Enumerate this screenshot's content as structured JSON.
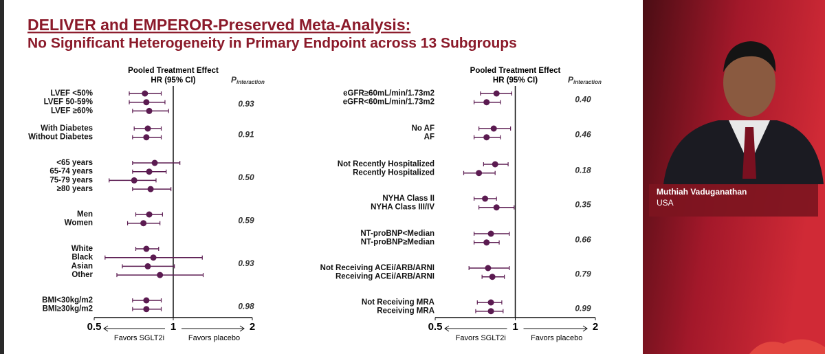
{
  "title": "DELIVER and EMPEROR-Preserved Meta-Analysis:",
  "subtitle": "No Significant Heterogeneity in Primary Endpoint across 13 Subgroups",
  "speaker": {
    "name": "Muthiah Vaduganathan",
    "location": "USA"
  },
  "chart_data": [
    {
      "type": "forest",
      "header": "Pooled Treatment Effect",
      "subheader": "HR (95% CI)",
      "p_header": "P",
      "p_header_sub": "interaction",
      "favors_left": "Favors SGLT2i",
      "favors_right": "Favors placebo",
      "log_x": true,
      "xlim": [
        0.5,
        2
      ],
      "xticks": [
        0.5,
        1,
        2
      ],
      "color": "#5b1b51",
      "groups": [
        {
          "categories": [
            "LVEF <50%",
            "LVEF 50-59%",
            "LVEF ≥60%"
          ],
          "values": [
            0.78,
            0.79,
            0.81
          ],
          "lower": [
            0.68,
            0.68,
            0.7
          ],
          "upper": [
            0.9,
            0.93,
            0.96
          ],
          "p": "0.93"
        },
        {
          "categories": [
            "With Diabetes",
            "Without Diabetes"
          ],
          "values": [
            0.8,
            0.79
          ],
          "lower": [
            0.71,
            0.7
          ],
          "upper": [
            0.9,
            0.9
          ],
          "p": "0.91"
        },
        {
          "categories": [
            "<65 years",
            "65-74 years",
            "75-79 years",
            "≥80 years"
          ],
          "values": [
            0.85,
            0.81,
            0.71,
            0.82
          ],
          "lower": [
            0.7,
            0.7,
            0.57,
            0.7
          ],
          "upper": [
            1.06,
            0.94,
            0.86,
            0.98
          ],
          "p": "0.50"
        },
        {
          "categories": [
            "Men",
            "Women"
          ],
          "values": [
            0.81,
            0.77
          ],
          "lower": [
            0.72,
            0.67
          ],
          "upper": [
            0.91,
            0.89
          ],
          "p": "0.59"
        },
        {
          "categories": [
            "White",
            "Black",
            "Asian",
            "Other"
          ],
          "values": [
            0.79,
            0.84,
            0.8,
            0.89
          ],
          "lower": [
            0.72,
            0.55,
            0.64,
            0.61
          ],
          "upper": [
            0.88,
            1.29,
            1.01,
            1.3
          ],
          "p": "0.93"
        },
        {
          "categories": [
            "BMI<30kg/m2",
            "BMI≥30kg/m2"
          ],
          "values": [
            0.79,
            0.79
          ],
          "lower": [
            0.7,
            0.7
          ],
          "upper": [
            0.9,
            0.9
          ],
          "p": "0.98"
        }
      ]
    },
    {
      "type": "forest",
      "header": "Pooled Treatment Effect",
      "subheader": "HR (95% CI)",
      "p_header": "P",
      "p_header_sub": "interaction",
      "favors_left": "Favors SGLT2i",
      "favors_right": "Favors placebo",
      "log_x": true,
      "xlim": [
        0.5,
        2
      ],
      "xticks": [
        0.5,
        1,
        2
      ],
      "color": "#5b1b51",
      "groups": [
        {
          "categories": [
            "eGFR≥60mL/min/1.73m2",
            "eGFR<60mL/min/1.73m2"
          ],
          "values": [
            0.85,
            0.78
          ],
          "lower": [
            0.74,
            0.7
          ],
          "upper": [
            0.97,
            0.88
          ],
          "p": "0.40"
        },
        {
          "categories": [
            "No AF",
            "AF"
          ],
          "values": [
            0.83,
            0.78
          ],
          "lower": [
            0.73,
            0.7
          ],
          "upper": [
            0.96,
            0.88
          ],
          "p": "0.46"
        },
        {
          "categories": [
            "Not Recently Hospitalized",
            "Recently Hospitalized"
          ],
          "values": [
            0.84,
            0.73
          ],
          "lower": [
            0.76,
            0.64
          ],
          "upper": [
            0.94,
            0.84
          ],
          "p": "0.18"
        },
        {
          "categories": [
            "NYHA Class II",
            "NYHA Class III/IV"
          ],
          "values": [
            0.77,
            0.85
          ],
          "lower": [
            0.7,
            0.73
          ],
          "upper": [
            0.85,
            0.99
          ],
          "p": "0.35"
        },
        {
          "categories": [
            "NT-proBNP<Median",
            "NT-proBNP≥Median"
          ],
          "values": [
            0.81,
            0.78
          ],
          "lower": [
            0.7,
            0.7
          ],
          "upper": [
            0.95,
            0.87
          ],
          "p": "0.66"
        },
        {
          "categories": [
            "Not Receiving ACEi/ARB/ARNI",
            "Receiving ACEi/ARB/ARNI"
          ],
          "values": [
            0.79,
            0.82
          ],
          "lower": [
            0.67,
            0.75
          ],
          "upper": [
            0.95,
            0.91
          ],
          "p": "0.79"
        },
        {
          "categories": [
            "Not Receiving MRA",
            "Receiving MRA"
          ],
          "values": [
            0.81,
            0.81
          ],
          "lower": [
            0.72,
            0.71
          ],
          "upper": [
            0.89,
            0.9
          ],
          "p": "0.99"
        }
      ]
    }
  ]
}
